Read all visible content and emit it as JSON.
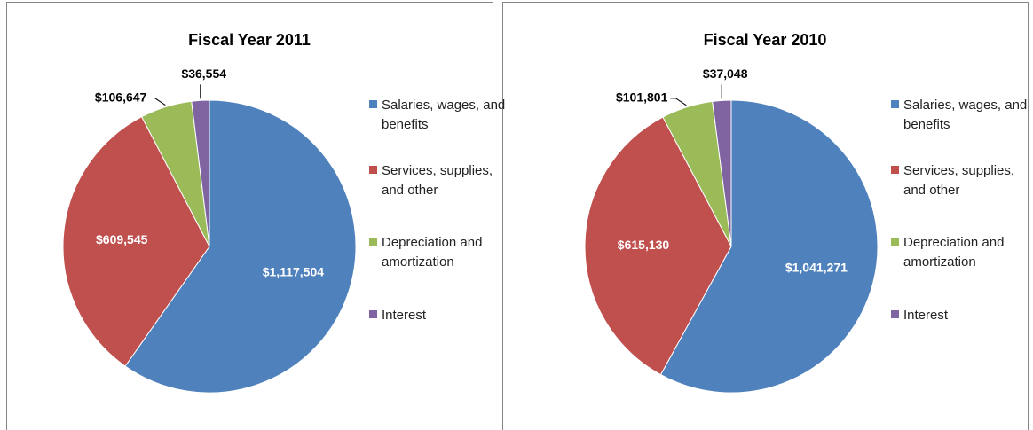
{
  "chart_data": [
    {
      "type": "pie",
      "title": "Fiscal Year 2011",
      "categories": [
        "Salaries, wages, and benefits",
        "Services, supplies, and other",
        "Depreciation and amortization",
        "Interest"
      ],
      "values": [
        1117504,
        609545,
        106647,
        36554
      ],
      "value_labels": [
        "$1,117,504",
        "$609,545",
        "$106,647",
        "$36,554"
      ],
      "colors": [
        "#4f81bd",
        "#c0504d",
        "#9bbb59",
        "#8064a2"
      ],
      "legend": "right"
    },
    {
      "type": "pie",
      "title": "Fiscal Year 2010",
      "categories": [
        "Salaries, wages, and benefits",
        "Services, supplies, and other",
        "Depreciation and amortization",
        "Interest"
      ],
      "values": [
        1041271,
        615130,
        101801,
        37048
      ],
      "value_labels": [
        "$1,041,271",
        "$615,130",
        "$101,801",
        "$37,048"
      ],
      "colors": [
        "#4f81bd",
        "#c0504d",
        "#9bbb59",
        "#8064a2"
      ],
      "legend": "right"
    }
  ]
}
